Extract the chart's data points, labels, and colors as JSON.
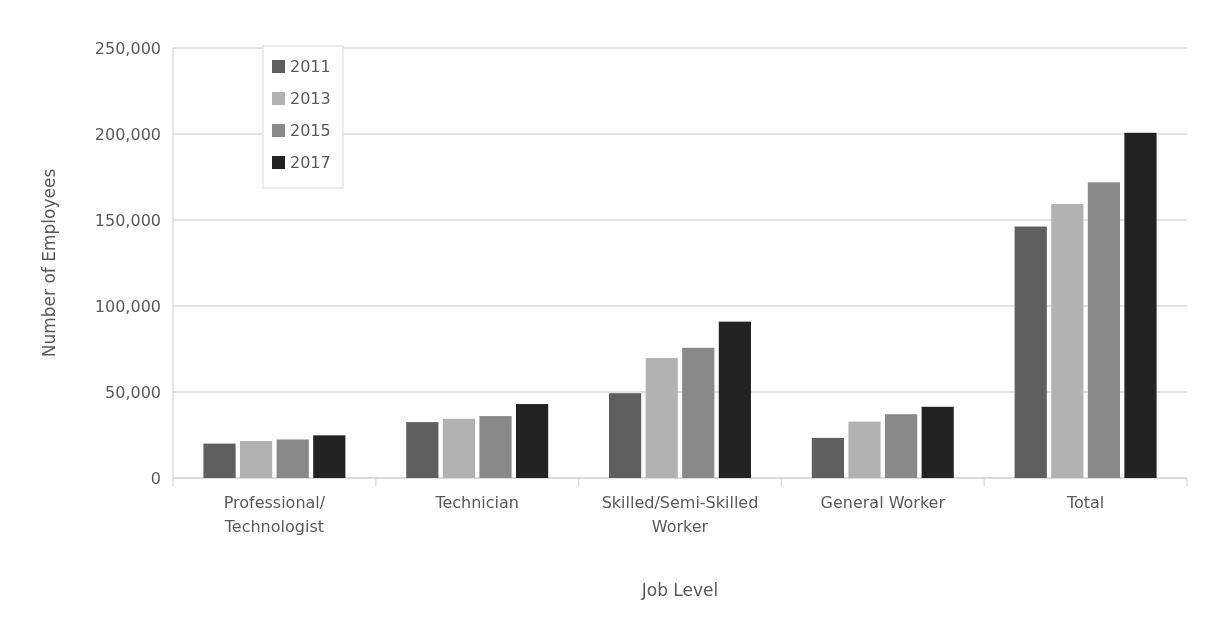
{
  "chart_data": {
    "type": "bar",
    "xlabel": "Job Level",
    "ylabel": "Number of Employees",
    "categories": [
      "Professional/ Technologist",
      "Technician",
      "Skilled/Semi-Skilled Worker",
      "General Worker",
      "Total"
    ],
    "series": [
      {
        "name": "2011",
        "color": "#5f5f5f",
        "values": [
          20000,
          32500,
          49300,
          23300,
          146200
        ]
      },
      {
        "name": "2013",
        "color": "#b2b2b2",
        "values": [
          21500,
          34400,
          69700,
          32800,
          159300
        ]
      },
      {
        "name": "2015",
        "color": "#898989",
        "values": [
          22400,
          36000,
          75700,
          37100,
          171900
        ]
      },
      {
        "name": "2017",
        "color": "#222222",
        "values": [
          24800,
          43000,
          90900,
          41400,
          200700
        ]
      }
    ],
    "ylim": [
      0,
      250000
    ],
    "yticks": [
      {
        "value": 0,
        "label": "0"
      },
      {
        "value": 50000,
        "label": "50,000"
      },
      {
        "value": 100000,
        "label": "100,000"
      },
      {
        "value": 150000,
        "label": "150,000"
      },
      {
        "value": 200000,
        "label": "200,000"
      },
      {
        "value": 250000,
        "label": "250,000"
      }
    ],
    "grid": "y",
    "legend": "top left"
  }
}
